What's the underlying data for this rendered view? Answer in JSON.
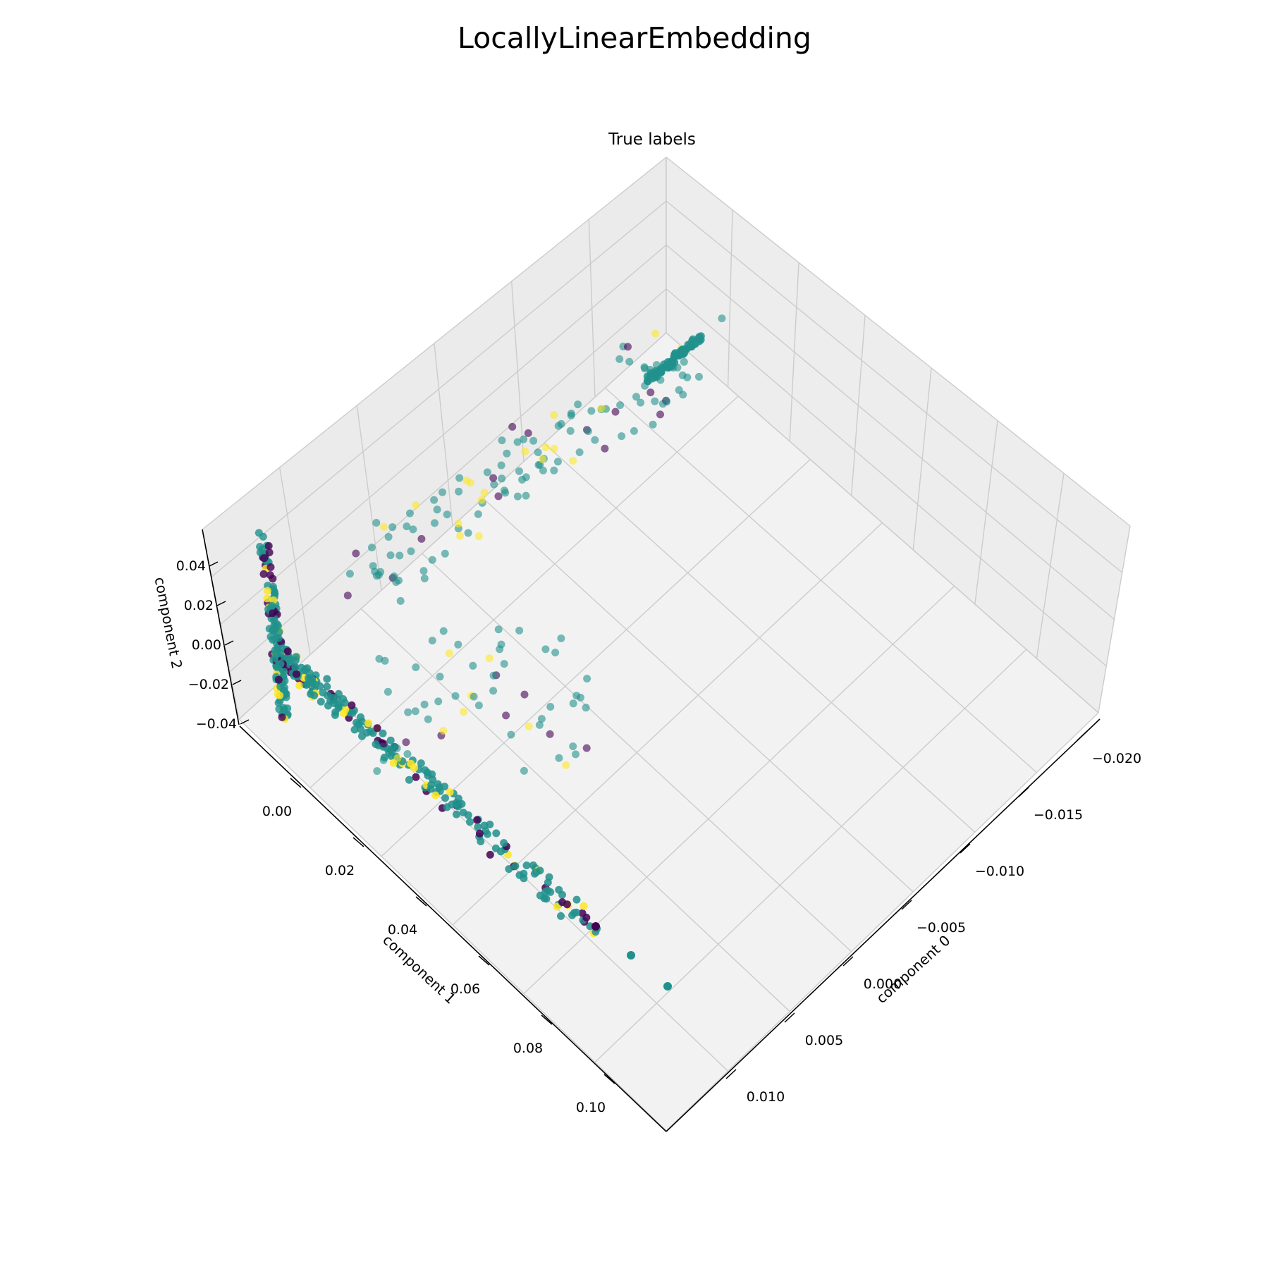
{
  "title": "LocallyLinearEmbedding",
  "chart_data": {
    "type": "scatter",
    "projection": "3d",
    "subtitle": "True labels",
    "xlabel": "component 0",
    "ylabel": "component 1",
    "zlabel": "component 2",
    "x_ticks": [
      "−0.020",
      "−0.015",
      "−0.010",
      "−0.005",
      "0.000",
      "0.005",
      "0.010"
    ],
    "y_ticks": [
      "0.00",
      "0.02",
      "0.04",
      "0.06",
      "0.08",
      "0.10"
    ],
    "z_ticks": [
      "0.04",
      "0.02",
      "0.00",
      "−0.02",
      "−0.04"
    ],
    "grid": true,
    "legend": "none",
    "colors": {
      "class_0": "#440154",
      "class_1": "#21918c",
      "class_2": "#fde725",
      "pane": "#f2f2f2",
      "grid": "#cccccc"
    }
  }
}
